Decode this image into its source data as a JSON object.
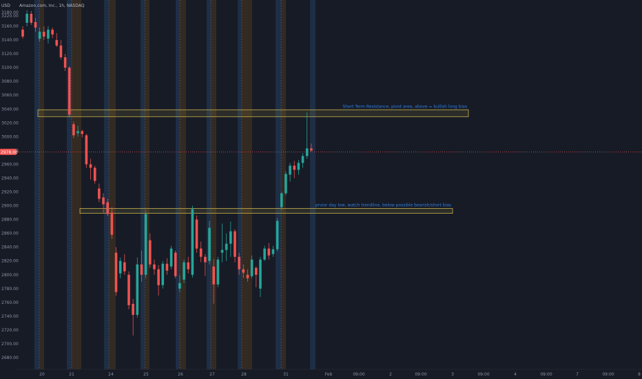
{
  "header": {
    "symbol_title": "Amazon.com, Inc., 1h, NASDAQ",
    "currency": "USD"
  },
  "colors": {
    "background": "#171b26",
    "up": "#26a69a",
    "down": "#ef5350",
    "session_premarket": "#1e2e45",
    "session_afterhours": "#332a22",
    "annotation_box": "#c8b24a",
    "annotation_text": "#2f7fe0",
    "current_price_line": "#ef5350"
  },
  "chart_data": {
    "type": "candlestick",
    "title": "Amazon.com, Inc., 1h, NASDAQ",
    "ylabel": "USD",
    "ylim": [
      2660,
      3225
    ],
    "y_ticks": [
      3220,
      3180,
      3160,
      3140,
      3120,
      3100,
      3080,
      3060,
      3040,
      3020,
      3000,
      2980,
      2960,
      2940,
      2920,
      2900,
      2880,
      2860,
      2840,
      2820,
      2800,
      2780,
      2760,
      2740,
      2720,
      2700,
      2680
    ],
    "y_tick_labels": [
      "3220.00",
      "3180.00",
      "3160.00",
      "3140.00",
      "3120.00",
      "3100.00",
      "3080.00",
      "3060.00",
      "3040.00",
      "3020.00",
      "3000.00",
      "2980.00",
      "2960.00",
      "2940.00",
      "2920.00",
      "2900.00",
      "2880.00",
      "2860.00",
      "2840.00",
      "2820.00",
      "2800.00",
      "2780.00",
      "2760.00",
      "2740.00",
      "2720.00",
      "2700.00",
      "2680.00"
    ],
    "x_labels": [
      "20",
      "21",
      "24",
      "25",
      "26",
      "27",
      "28",
      "31",
      "Feb",
      "09:00",
      "2",
      "09:00",
      "3",
      "09:00",
      "4",
      "09:00",
      "7",
      "09:00",
      "8"
    ],
    "candles": [
      {
        "o": 3155,
        "h": 3160,
        "l": 3142,
        "c": 3145
      },
      {
        "o": 3165,
        "h": 3183,
        "l": 3160,
        "c": 3178
      },
      {
        "o": 3178,
        "h": 3182,
        "l": 3162,
        "c": 3165
      },
      {
        "o": 3166,
        "h": 3172,
        "l": 3152,
        "c": 3158
      },
      {
        "o": 3142,
        "h": 3158,
        "l": 3138,
        "c": 3152
      },
      {
        "o": 3152,
        "h": 3160,
        "l": 3140,
        "c": 3145
      },
      {
        "o": 3142,
        "h": 3160,
        "l": 3135,
        "c": 3155
      },
      {
        "o": 3155,
        "h": 3158,
        "l": 3143,
        "c": 3148
      },
      {
        "o": 3140,
        "h": 3150,
        "l": 3130,
        "c": 3132
      },
      {
        "o": 3132,
        "h": 3140,
        "l": 3112,
        "c": 3115
      },
      {
        "o": 3115,
        "h": 3120,
        "l": 3095,
        "c": 3100
      },
      {
        "o": 3100,
        "h": 3102,
        "l": 3028,
        "c": 3032
      },
      {
        "o": 3018,
        "h": 3022,
        "l": 2998,
        "c": 3002
      },
      {
        "o": 3005,
        "h": 3016,
        "l": 3000,
        "c": 3008
      },
      {
        "o": 3008,
        "h": 3010,
        "l": 2999,
        "c": 3004
      },
      {
        "o": 3002,
        "h": 3004,
        "l": 2955,
        "c": 2960
      },
      {
        "o": 2960,
        "h": 2968,
        "l": 2938,
        "c": 2955
      },
      {
        "o": 2955,
        "h": 2958,
        "l": 2932,
        "c": 2936
      },
      {
        "o": 2925,
        "h": 2932,
        "l": 2905,
        "c": 2910
      },
      {
        "o": 2912,
        "h": 2918,
        "l": 2890,
        "c": 2902
      },
      {
        "o": 2905,
        "h": 2910,
        "l": 2885,
        "c": 2888
      },
      {
        "o": 2890,
        "h": 2898,
        "l": 2852,
        "c": 2858
      },
      {
        "o": 2832,
        "h": 2840,
        "l": 2770,
        "c": 2775
      },
      {
        "o": 2802,
        "h": 2825,
        "l": 2795,
        "c": 2820
      },
      {
        "o": 2818,
        "h": 2830,
        "l": 2800,
        "c": 2805
      },
      {
        "o": 2800,
        "h": 2805,
        "l": 2750,
        "c": 2756
      },
      {
        "o": 2758,
        "h": 2765,
        "l": 2712,
        "c": 2742
      },
      {
        "o": 2742,
        "h": 2825,
        "l": 2738,
        "c": 2815
      },
      {
        "o": 2815,
        "h": 2835,
        "l": 2790,
        "c": 2800
      },
      {
        "o": 2800,
        "h": 2893,
        "l": 2795,
        "c": 2888
      },
      {
        "o": 2850,
        "h": 2860,
        "l": 2810,
        "c": 2815
      },
      {
        "o": 2815,
        "h": 2822,
        "l": 2800,
        "c": 2808
      },
      {
        "o": 2808,
        "h": 2814,
        "l": 2770,
        "c": 2785
      },
      {
        "o": 2785,
        "h": 2820,
        "l": 2780,
        "c": 2816
      },
      {
        "o": 2816,
        "h": 2824,
        "l": 2800,
        "c": 2806
      },
      {
        "o": 2812,
        "h": 2842,
        "l": 2808,
        "c": 2838
      },
      {
        "o": 2832,
        "h": 2835,
        "l": 2795,
        "c": 2798
      },
      {
        "o": 2780,
        "h": 2800,
        "l": 2775,
        "c": 2788
      },
      {
        "o": 2793,
        "h": 2822,
        "l": 2788,
        "c": 2818
      },
      {
        "o": 2818,
        "h": 2826,
        "l": 2802,
        "c": 2808
      },
      {
        "o": 2800,
        "h": 2900,
        "l": 2796,
        "c": 2895
      },
      {
        "o": 2880,
        "h": 2886,
        "l": 2832,
        "c": 2838
      },
      {
        "o": 2838,
        "h": 2848,
        "l": 2818,
        "c": 2826
      },
      {
        "o": 2826,
        "h": 2830,
        "l": 2798,
        "c": 2818
      },
      {
        "o": 2820,
        "h": 2878,
        "l": 2815,
        "c": 2868
      },
      {
        "o": 2812,
        "h": 2823,
        "l": 2758,
        "c": 2786
      },
      {
        "o": 2786,
        "h": 2826,
        "l": 2782,
        "c": 2822
      },
      {
        "o": 2832,
        "h": 2874,
        "l": 2818,
        "c": 2836
      },
      {
        "o": 2836,
        "h": 2860,
        "l": 2820,
        "c": 2845
      },
      {
        "o": 2845,
        "h": 2877,
        "l": 2826,
        "c": 2863
      },
      {
        "o": 2863,
        "h": 2866,
        "l": 2818,
        "c": 2826
      },
      {
        "o": 2826,
        "h": 2832,
        "l": 2800,
        "c": 2808
      },
      {
        "o": 2808,
        "h": 2815,
        "l": 2795,
        "c": 2803
      },
      {
        "o": 2800,
        "h": 2808,
        "l": 2790,
        "c": 2795
      },
      {
        "o": 2798,
        "h": 2828,
        "l": 2795,
        "c": 2822
      },
      {
        "o": 2810,
        "h": 2812,
        "l": 2782,
        "c": 2800
      },
      {
        "o": 2780,
        "h": 2826,
        "l": 2768,
        "c": 2822
      },
      {
        "o": 2822,
        "h": 2842,
        "l": 2820,
        "c": 2838
      },
      {
        "o": 2838,
        "h": 2846,
        "l": 2822,
        "c": 2828
      },
      {
        "o": 2830,
        "h": 2842,
        "l": 2826,
        "c": 2837
      },
      {
        "o": 2837,
        "h": 2882,
        "l": 2834,
        "c": 2878
      },
      {
        "o": 2898,
        "h": 2920,
        "l": 2894,
        "c": 2918
      },
      {
        "o": 2918,
        "h": 2950,
        "l": 2915,
        "c": 2946
      },
      {
        "o": 2945,
        "h": 2962,
        "l": 2935,
        "c": 2958
      },
      {
        "o": 2958,
        "h": 2965,
        "l": 2940,
        "c": 2952
      },
      {
        "o": 2952,
        "h": 2966,
        "l": 2945,
        "c": 2962
      },
      {
        "o": 2962,
        "h": 2976,
        "l": 2955,
        "c": 2972
      },
      {
        "o": 2972,
        "h": 3035,
        "l": 2968,
        "c": 2983
      },
      {
        "o": 2983,
        "h": 2990,
        "l": 2978,
        "c": 2980
      }
    ],
    "current_price": 2978,
    "annotations": [
      {
        "text": "Short Term Resistance, pivot area, above = bullish long bias",
        "y_low": 3029,
        "y_high": 3039
      },
      {
        "text": "prvior day low, watch trendline, below possible bearish/short bias",
        "y_low": 2889,
        "y_high": 2896
      }
    ]
  }
}
